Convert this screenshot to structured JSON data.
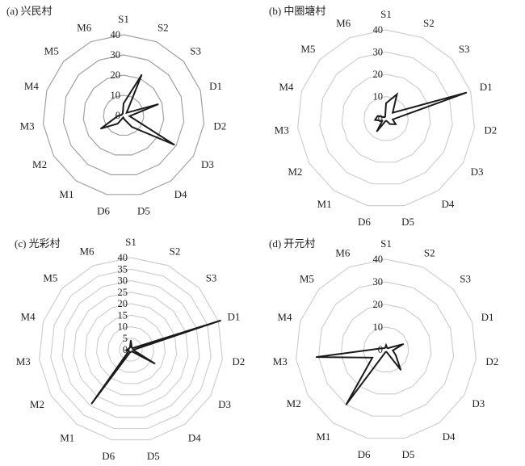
{
  "chart_data": [
    {
      "type": "radar",
      "title": "(a) 兴民村",
      "categories": [
        "S1",
        "S2",
        "S3",
        "D1",
        "D2",
        "D3",
        "D4",
        "D5",
        "D6",
        "M1",
        "M2",
        "M3",
        "M4",
        "M5",
        "M6"
      ],
      "values": [
        6,
        22,
        2,
        18,
        3,
        29,
        7,
        2,
        1,
        5,
        13,
        3,
        1,
        1,
        1
      ],
      "rlim": [
        0,
        40
      ],
      "ticks": [
        0,
        10,
        20,
        30,
        40
      ],
      "grid_color": "#a0a0a0",
      "line_color": "#1a1a1a"
    },
    {
      "type": "radar",
      "title": "(b) 中圈塘村",
      "categories": [
        "S1",
        "S2",
        "S3",
        "D1",
        "D2",
        "D3",
        "D4",
        "D5",
        "D6",
        "M1",
        "M2",
        "M3",
        "M4",
        "M5",
        "M6"
      ],
      "values": [
        7,
        12,
        4,
        38,
        3,
        5,
        3,
        1,
        1,
        7,
        2,
        5,
        4,
        1,
        1
      ],
      "rlim": [
        0,
        40
      ],
      "ticks": [
        0,
        10,
        20,
        30,
        40
      ],
      "grid_color": "#cfcfcf",
      "line_color": "#1a1a1a"
    },
    {
      "type": "radar",
      "title": "(c) 光彩村",
      "categories": [
        "S1",
        "S2",
        "S3",
        "D1",
        "D2",
        "D3",
        "D4",
        "D5",
        "D6",
        "M1",
        "M2",
        "M3",
        "M4",
        "M5",
        "M6"
      ],
      "values": [
        4,
        1,
        1,
        41,
        1,
        12,
        1,
        1,
        1,
        29,
        1,
        2,
        1,
        1,
        1
      ],
      "rlim": [
        0,
        40
      ],
      "ticks": [
        0,
        5,
        10,
        15,
        20,
        25,
        30,
        35,
        40
      ],
      "grid_color": "#cfcfcf",
      "line_color": "#1a1a1a"
    },
    {
      "type": "radar",
      "title": "(d) 开元村",
      "categories": [
        "S1",
        "S2",
        "S3",
        "D1",
        "D2",
        "D3",
        "D4",
        "D5",
        "D6",
        "M1",
        "M2",
        "M3",
        "M4",
        "M5",
        "M6"
      ],
      "values": [
        2,
        1,
        1,
        8,
        3,
        5,
        11,
        1,
        1,
        30,
        7,
        31,
        2,
        1,
        1
      ],
      "rlim": [
        0,
        40
      ],
      "ticks": [
        0,
        10,
        20,
        30,
        40
      ],
      "grid_color": "#cfcfcf",
      "line_color": "#1a1a1a"
    }
  ]
}
